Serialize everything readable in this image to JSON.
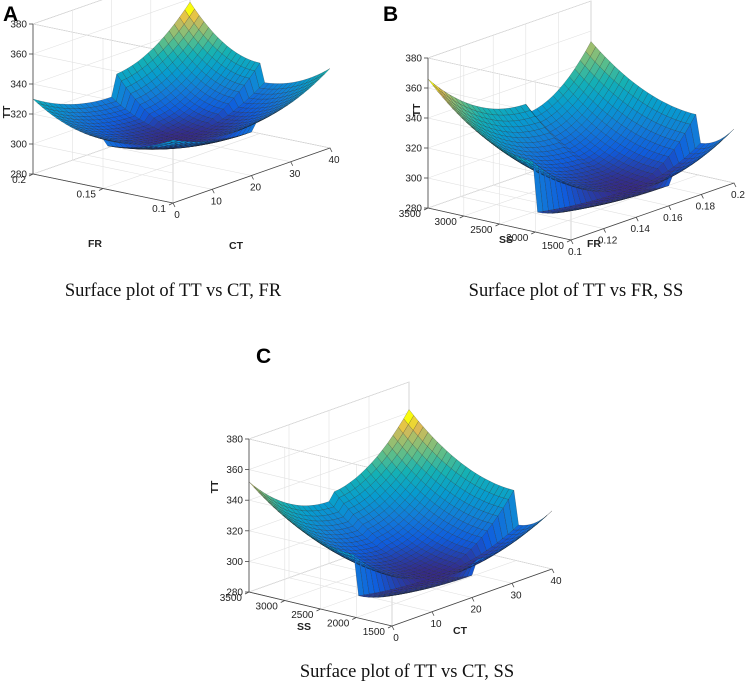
{
  "figure": {
    "captions": [
      "Surface plot of TT vs CT, FR",
      "Surface plot of TT vs FR, SS",
      "Surface plot of TT vs CT, SS"
    ]
  },
  "chart_data": [
    {
      "panel": "A",
      "type": "surface",
      "caption": "Surface plot of TT vs CT, FR",
      "xlabel": "CT",
      "ylabel": "FR",
      "zlabel": "TT",
      "xlim": [
        0,
        40
      ],
      "ylim": [
        0.1,
        0.2
      ],
      "zlim": [
        280,
        380
      ],
      "xticks": [
        0,
        10,
        20,
        30,
        40
      ],
      "yticks": [
        0.1,
        0.15,
        0.2
      ],
      "zticks": [
        280,
        300,
        320,
        340,
        360,
        380
      ],
      "ytick_labels": [
        "0.1",
        "0.15",
        "0.2"
      ],
      "corner_values": {
        "x_min_y_min": 322,
        "x_max_y_min": 333,
        "x_min_y_max": 330,
        "x_max_y_max": 358
      },
      "minimum": {
        "x": 20,
        "y": 0.15,
        "z": 296
      },
      "grid_n": 30
    },
    {
      "panel": "B",
      "type": "surface",
      "caption": "Surface plot of TT vs FR, SS",
      "xlabel": "FR",
      "ylabel": "SS",
      "zlabel": "TT",
      "xlim": [
        0.1,
        0.2
      ],
      "ylim": [
        1500,
        3500
      ],
      "zlim": [
        280,
        380
      ],
      "xticks": [
        0.1,
        0.12,
        0.14,
        0.16,
        0.18,
        0.2
      ],
      "yticks": [
        1500,
        2000,
        2500,
        3000,
        3500
      ],
      "zticks": [
        280,
        300,
        320,
        340,
        360,
        380
      ],
      "ytick_labels": [
        "1500",
        "2000",
        "2500",
        "3000",
        "3500"
      ],
      "corner_values": {
        "x_min_y_min": 300,
        "x_max_y_min": 316,
        "x_min_y_max": 366,
        "x_max_y_max": 353
      },
      "minimum": {
        "x": 0.16,
        "y": 2000,
        "z": 287
      },
      "grid_n": 30
    },
    {
      "panel": "C",
      "type": "surface",
      "caption": "Surface plot of TT vs CT, SS",
      "xlabel": "CT",
      "ylabel": "SS",
      "zlabel": "TT",
      "xlim": [
        0,
        40
      ],
      "ylim": [
        1500,
        3500
      ],
      "zlim": [
        280,
        380
      ],
      "xticks": [
        0,
        10,
        20,
        30,
        40
      ],
      "yticks": [
        1500,
        2000,
        2500,
        3000,
        3500
      ],
      "zticks": [
        280,
        300,
        320,
        340,
        360,
        380
      ],
      "ytick_labels": [
        "1500",
        "2000",
        "2500",
        "3000",
        "3500"
      ],
      "corner_values": {
        "x_min_y_min": 300,
        "x_max_y_min": 318,
        "x_min_y_max": 352,
        "x_max_y_max": 362
      },
      "minimum": {
        "x": 20,
        "y": 2000,
        "z": 289
      },
      "grid_n": 30
    }
  ]
}
